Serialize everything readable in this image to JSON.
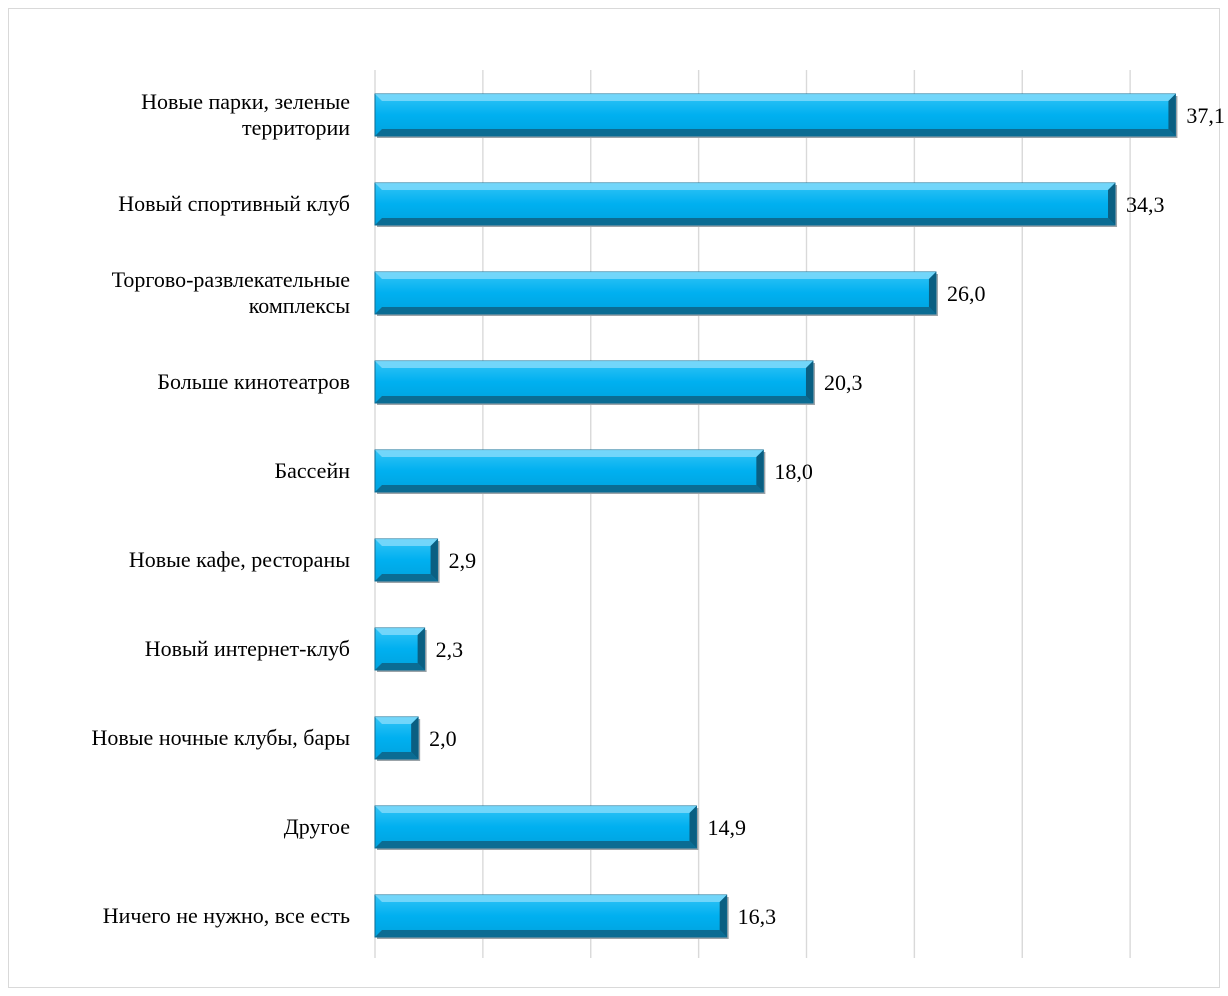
{
  "chart_data": {
    "type": "bar",
    "orientation": "horizontal",
    "title": "",
    "xlabel": "",
    "ylabel": "",
    "xlim": [
      0,
      40
    ],
    "grid": "vertical",
    "legend": "none",
    "bar_color": "#00B0F0",
    "bar_shadow_color": "#0E6E96",
    "categories": [
      [
        "Новые парки, зеленые",
        "территории"
      ],
      [
        "Новый спортивный клуб"
      ],
      [
        "Торгово-развлекательные",
        "комплексы"
      ],
      [
        "Больше кинотеатров"
      ],
      [
        "Бассейн"
      ],
      [
        "Новые кафе, рестораны"
      ],
      [
        "Новый интернет-клуб"
      ],
      [
        "Новые ночные клубы, бары"
      ],
      [
        "Другое"
      ],
      [
        "Ничего не нужно, все есть"
      ]
    ],
    "values": [
      37.1,
      34.3,
      26.0,
      20.3,
      18.0,
      2.9,
      2.3,
      2.0,
      14.9,
      16.3
    ],
    "value_labels": [
      "37,1",
      "34,3",
      "26,0",
      "20,3",
      "18,0",
      "2,9",
      "2,3",
      "2,0",
      "14,9",
      "16,3"
    ]
  }
}
